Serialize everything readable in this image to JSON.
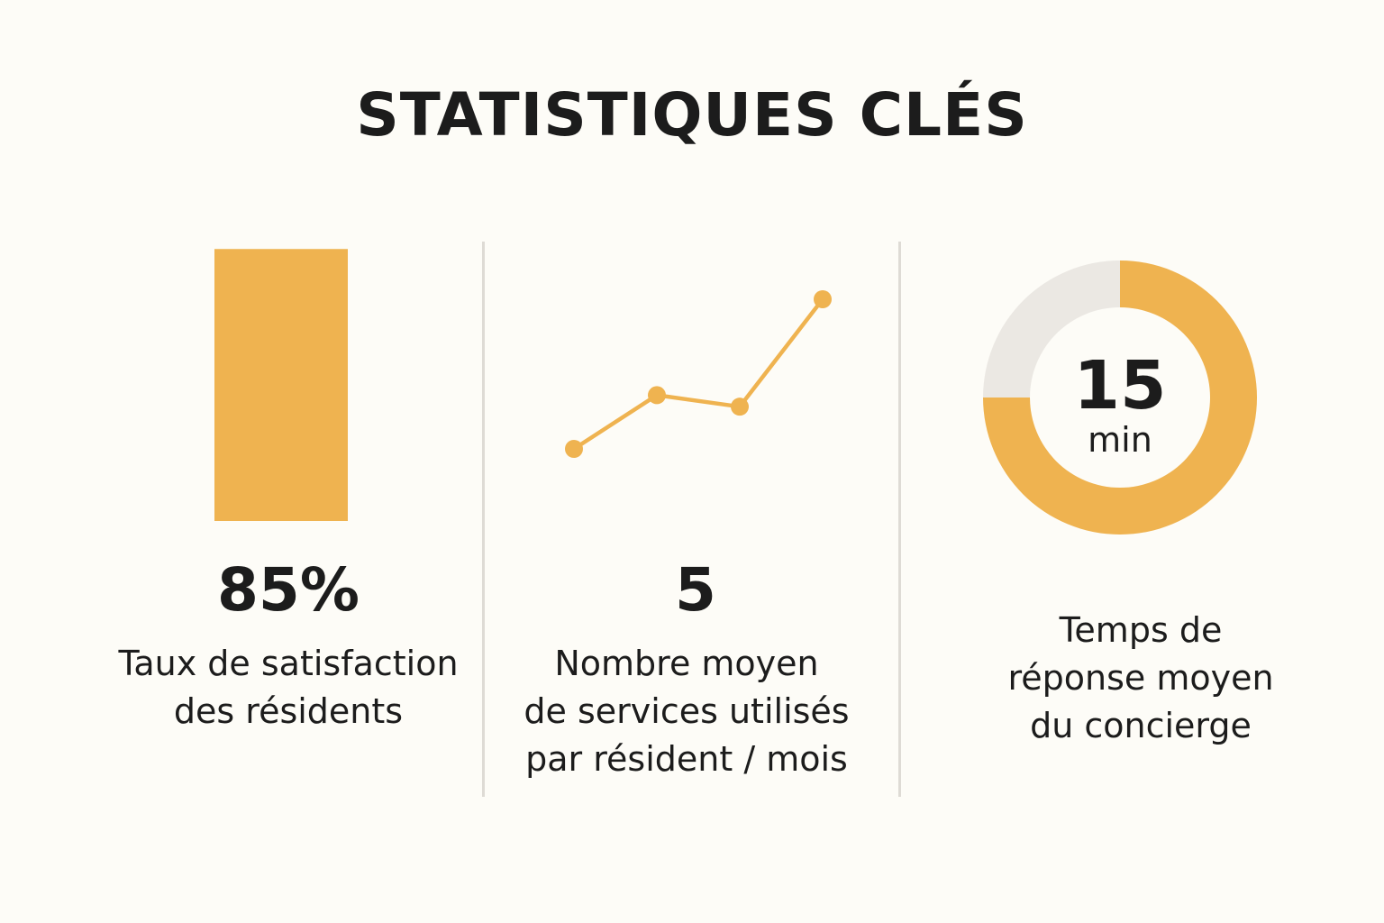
{
  "title": "STATISTIQUES CLÉS",
  "colors": {
    "accent": "#efb350",
    "track": "#ebe8e3",
    "background": "#fdfcf7",
    "divider": "#dedbd5",
    "text": "#1c1c1c"
  },
  "chart_data": [
    {
      "type": "bar",
      "values": [
        85
      ],
      "ylim": [
        0,
        100
      ],
      "value_label": "85%",
      "caption": [
        "Taux de satisfaction",
        "des résidents"
      ]
    },
    {
      "type": "line",
      "x": [
        1,
        2,
        3,
        4
      ],
      "values": [
        1.0,
        2.4,
        2.1,
        4.9
      ],
      "value_label": "5",
      "caption": [
        "Nombre moyen",
        "de services utilisés",
        "par résident / mois"
      ]
    },
    {
      "type": "pie",
      "values": [
        75,
        25
      ],
      "donut": true,
      "center_value": "15",
      "center_unit": "min",
      "caption": [
        "Temps de",
        "réponse moyen",
        "du concierge"
      ]
    }
  ]
}
